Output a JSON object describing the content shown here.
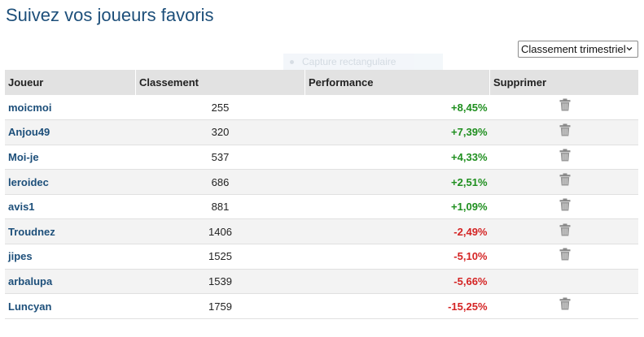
{
  "page": {
    "title": "Suivez vos joueurs favoris"
  },
  "overlay": {
    "label": "Capture rectangulaire"
  },
  "filter": {
    "selected": "Classement trimestriel"
  },
  "table": {
    "headers": {
      "player": "Joueur",
      "rank": "Classement",
      "performance": "Performance",
      "delete": "Supprimer"
    },
    "rows": [
      {
        "player": "moicmoi",
        "rank": "255",
        "performance": "+8,45%",
        "trend": "pos",
        "deletable": true
      },
      {
        "player": "Anjou49",
        "rank": "320",
        "performance": "+7,39%",
        "trend": "pos",
        "deletable": true
      },
      {
        "player": "Moi-je",
        "rank": "537",
        "performance": "+4,33%",
        "trend": "pos",
        "deletable": true
      },
      {
        "player": "leroidec",
        "rank": "686",
        "performance": "+2,51%",
        "trend": "pos",
        "deletable": true
      },
      {
        "player": "avis1",
        "rank": "881",
        "performance": "+1,09%",
        "trend": "pos",
        "deletable": true
      },
      {
        "player": "Troudnez",
        "rank": "1406",
        "performance": "-2,49%",
        "trend": "neg",
        "deletable": true
      },
      {
        "player": "jipes",
        "rank": "1525",
        "performance": "-5,10%",
        "trend": "neg",
        "deletable": true
      },
      {
        "player": "arbalupa",
        "rank": "1539",
        "performance": "-5,66%",
        "trend": "neg",
        "deletable": false
      },
      {
        "player": "Luncyan",
        "rank": "1759",
        "performance": "-15,25%",
        "trend": "neg",
        "deletable": true
      }
    ]
  },
  "colors": {
    "title": "#1d4f7a",
    "positive": "#1f8f1f",
    "negative": "#d42424",
    "header_bg": "#e2e2e2"
  },
  "icons": {
    "delete": "trash-icon",
    "dropdown": "chevron-down-icon"
  }
}
